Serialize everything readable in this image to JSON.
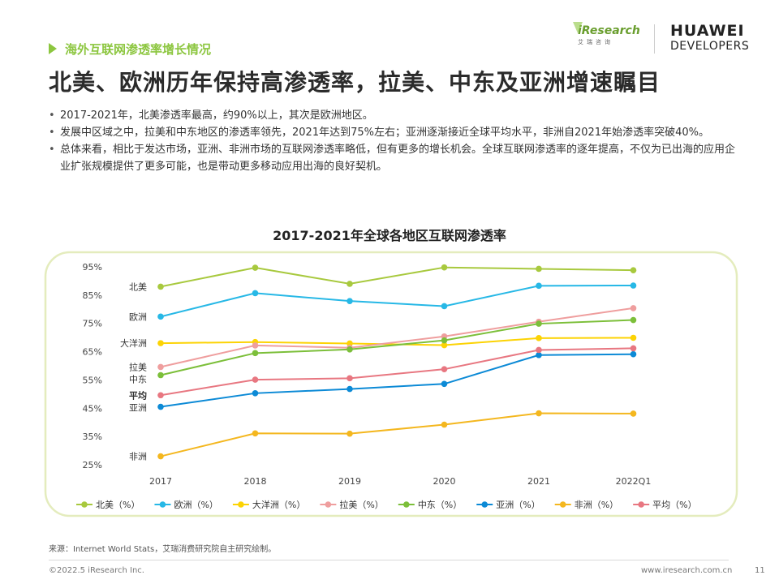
{
  "section": "海外互联网渗透率增长情况",
  "headline": "北美、欧洲历年保持高渗透率，拉美、中东及亚洲增速瞩目",
  "logo": {
    "ir_name": "iResearch",
    "ir_sub": "艾瑞咨询",
    "hw_line1": "HUAWEI",
    "hw_line2": "DEVELOPERS"
  },
  "bullets": [
    "2017-2021年，北美渗透率最高，约90%以上，其次是欧洲地区。",
    "发展中区域之中，拉美和中东地区的渗透率领先，2021年达到75%左右；亚洲逐渐接近全球平均水平，非洲自2021年始渗透率突破40%。",
    "总体来看，相比于发达市场，亚洲、非洲市场的互联网渗透率略低，但有更多的增长机会。全球互联网渗透率的逐年提高，不仅为已出海的应用企业扩张规模提供了更多可能，也是带动更多移动应用出海的良好契机。"
  ],
  "chart_data": {
    "type": "line",
    "title": "2017-2021年全球各地区互联网渗透率",
    "categories": [
      "2017",
      "2018",
      "2019",
      "2020",
      "2021",
      "2022Q1"
    ],
    "y_ticks": [
      "25%",
      "35%",
      "45%",
      "55%",
      "65%",
      "75%",
      "85%",
      "95%"
    ],
    "ylim": [
      25,
      95
    ],
    "series": [
      {
        "name": "北美",
        "legend": "北美（%）",
        "label": "北美",
        "bold": false,
        "color": "#a8c93e",
        "values": [
          88.0,
          94.7,
          89.0,
          94.8,
          94.3,
          93.8
        ]
      },
      {
        "name": "欧洲",
        "legend": "欧洲（%）",
        "label": "欧洲",
        "bold": false,
        "color": "#27b8e6",
        "values": [
          77.4,
          85.7,
          82.9,
          81.1,
          88.3,
          88.4
        ]
      },
      {
        "name": "大洋洲",
        "legend": "大洋洲（%）",
        "label": "大洋洲",
        "bold": false,
        "color": "#fcd304",
        "values": [
          68.0,
          68.4,
          67.9,
          67.3,
          69.8,
          69.9
        ]
      },
      {
        "name": "拉美",
        "legend": "拉美（%）",
        "label": "拉美",
        "bold": false,
        "color": "#ef9e9e",
        "values": [
          59.6,
          67.2,
          66.4,
          70.4,
          75.6,
          80.4
        ]
      },
      {
        "name": "中东",
        "legend": "中东（%）",
        "label": "中东",
        "bold": false,
        "color": "#7cbf3a",
        "values": [
          56.7,
          64.5,
          65.8,
          69.0,
          74.9,
          76.2
        ]
      },
      {
        "name": "亚洲",
        "legend": "亚洲（%）",
        "label": "亚洲",
        "bold": false,
        "color": "#0c8ad6",
        "values": [
          45.5,
          50.3,
          51.8,
          53.6,
          63.8,
          64.1
        ]
      },
      {
        "name": "非洲",
        "legend": "非洲（%）",
        "label": "非洲",
        "bold": false,
        "color": "#f4b71f",
        "values": [
          28.0,
          36.1,
          36.0,
          39.2,
          43.2,
          43.1
        ]
      },
      {
        "name": "平均",
        "legend": "平均（%）",
        "label": "平均",
        "bold": true,
        "color": "#e87781",
        "values": [
          49.6,
          55.1,
          55.6,
          58.8,
          65.6,
          66.2
        ]
      }
    ]
  },
  "source": "来源：Internet World Stats，艾瑞消费研究院自主研究绘制。",
  "copyright": "©2022.5 iResearch Inc.",
  "site": "www.iresearch.com.cn",
  "page": "11"
}
